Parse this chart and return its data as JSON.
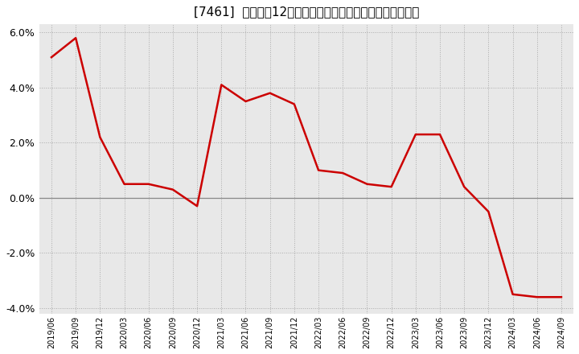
{
  "title": "[7461]  売上高の12か月移動合計の対前年同期増減率の推移",
  "line_color": "#cc0000",
  "bg_color": "#ffffff",
  "plot_bg_color": "#e8e8e8",
  "grid_color": "#aaaaaa",
  "zero_line_color": "#888888",
  "ylim": [
    -0.042,
    0.063
  ],
  "yticks": [
    -0.04,
    -0.02,
    0.0,
    0.02,
    0.04,
    0.06
  ],
  "dates": [
    "2019/06",
    "2019/09",
    "2019/12",
    "2020/03",
    "2020/06",
    "2020/09",
    "2020/12",
    "2021/03",
    "2021/06",
    "2021/09",
    "2021/12",
    "2022/03",
    "2022/06",
    "2022/09",
    "2022/12",
    "2023/03",
    "2023/06",
    "2023/09",
    "2023/12",
    "2024/03",
    "2024/06",
    "2024/09"
  ],
  "values": [
    0.051,
    0.058,
    0.022,
    0.005,
    0.005,
    0.003,
    -0.003,
    0.041,
    0.035,
    0.038,
    0.034,
    0.01,
    0.009,
    0.005,
    0.004,
    0.023,
    0.023,
    0.004,
    -0.005,
    -0.035,
    -0.036,
    -0.036
  ]
}
